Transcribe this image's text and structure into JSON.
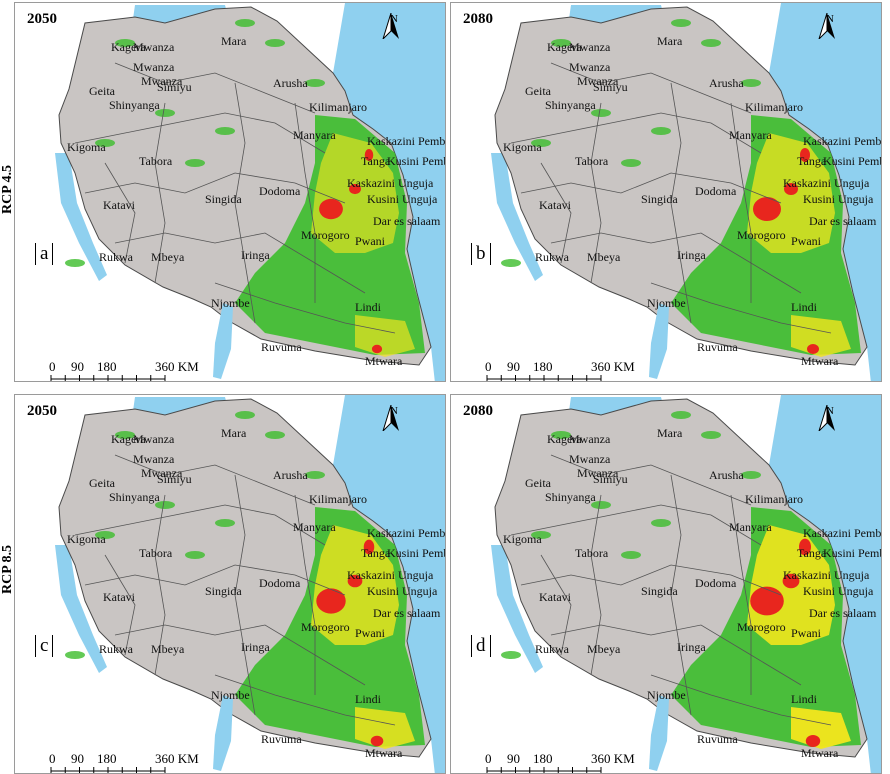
{
  "row_labels": [
    "RCP 4.5",
    "RCP 8.5"
  ],
  "panels": [
    {
      "year": "2050",
      "letter": "a"
    },
    {
      "year": "2080",
      "letter": "b"
    },
    {
      "year": "2050",
      "letter": "c"
    },
    {
      "year": "2080",
      "letter": "d"
    }
  ],
  "north_label": "N",
  "scale": {
    "labels": [
      "0",
      "90",
      "180",
      "360 KM"
    ]
  },
  "regions": [
    "Kagera",
    "Mwanza",
    "Mara",
    "Mwanza",
    "Mwanza",
    "Geita",
    "Simiyu",
    "Shinyanga",
    "Arusha",
    "Kilimanjaro",
    "Kigoma",
    "Manyara",
    "Tabora",
    "Kaskazini Pemba",
    "Tanga",
    "Kusini Pemba",
    "Dodoma",
    "Kaskazini Unguja",
    "Katavi",
    "Singida",
    "Kusini Unguja",
    "Dar es salaam",
    "Morogoro",
    "Pwani",
    "Rukwa",
    "Mbeya",
    "Iringa",
    "Njombe",
    "Lindi",
    "Ruvuma",
    "Mtwara"
  ],
  "colors": {
    "land": "#c9c5c3",
    "water": "#8fd0ef",
    "lake": "#6fbde8",
    "low": "#3cbd2c",
    "moderate": "#f1e51d",
    "high": "#e8261e",
    "border": "#555555"
  }
}
